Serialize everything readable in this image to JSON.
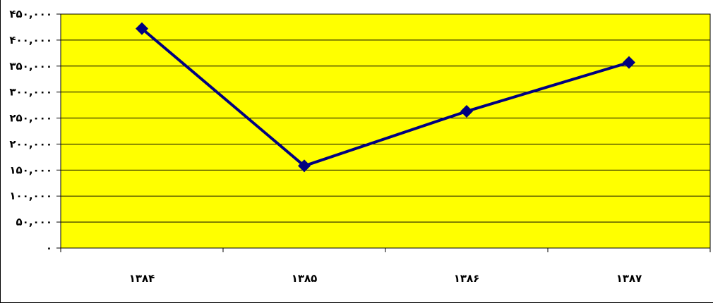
{
  "chart_data": {
    "type": "line",
    "title": "",
    "xlabel": "",
    "ylabel": "",
    "categories": [
      "۱۳۸۴",
      "۱۳۸۵",
      "۱۳۸۶",
      "۱۳۸۷"
    ],
    "series": [
      {
        "values": [
          422000,
          158000,
          263000,
          357000
        ],
        "color": "#000080"
      }
    ],
    "ylim": [
      0,
      450000
    ],
    "y_ticks": [
      0,
      50000,
      100000,
      150000,
      200000,
      250000,
      300000,
      350000,
      400000,
      450000
    ],
    "y_tick_labels": [
      "۰",
      "۵۰,۰۰۰",
      "۱۰۰,۰۰۰",
      "۱۵۰,۰۰۰",
      "۲۰۰,۰۰۰",
      "۲۵۰,۰۰۰",
      "۳۰۰,۰۰۰",
      "۳۵۰,۰۰۰",
      "۴۰۰,۰۰۰",
      "۴۵۰,۰۰۰"
    ],
    "grid": true,
    "legend": "none",
    "marker": "diamond",
    "plot_background": "#FFFF00",
    "gridline_color": "#000000"
  }
}
